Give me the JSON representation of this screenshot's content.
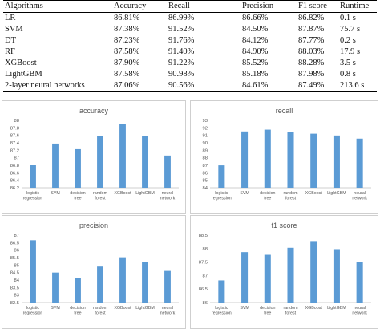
{
  "table": {
    "headers": [
      "Algorithms",
      "Accuracy",
      "Recall",
      "Precision",
      "F1 score",
      "Runtime"
    ],
    "rows": [
      [
        "LR",
        "86.81%",
        "86.99%",
        "86.66%",
        "86.82%",
        "0.1 s"
      ],
      [
        "SVM",
        "87.38%",
        "91.52%",
        "84.50%",
        "87.87%",
        "75.7 s"
      ],
      [
        "DT",
        "87.23%",
        "91.76%",
        "84.12%",
        "87.77%",
        "0.2 s"
      ],
      [
        "RF",
        "87.58%",
        "91.40%",
        "84.90%",
        "88.03%",
        "17.9 s"
      ],
      [
        "XGBoost",
        "87.90%",
        "91.22%",
        "85.52%",
        "88.28%",
        "3.5 s"
      ],
      [
        "LightGBM",
        "87.58%",
        "90.98%",
        "85.18%",
        "87.98%",
        "0.8 s"
      ],
      [
        "2-layer neural networks",
        "87.06%",
        "90.56%",
        "84.61%",
        "87.49%",
        "213.6 s"
      ]
    ]
  },
  "chart_data": [
    {
      "type": "bar",
      "title": "accuracy",
      "categories": [
        [
          "logistic",
          "regression"
        ],
        [
          "SVM"
        ],
        [
          "decision",
          "tree"
        ],
        [
          "random",
          "forest"
        ],
        [
          "XGBoost"
        ],
        [
          "LightGBM"
        ],
        [
          "neural",
          "network"
        ]
      ],
      "values": [
        86.81,
        87.38,
        87.23,
        87.58,
        87.9,
        87.58,
        87.06
      ],
      "ylim": [
        86.2,
        88
      ],
      "yticks": [
        "86.2",
        "86.4",
        "86.6",
        "86.8",
        "87",
        "87.2",
        "87.4",
        "87.6",
        "87.8",
        "88"
      ],
      "color": "#5b9bd5",
      "grid": false
    },
    {
      "type": "bar",
      "title": "recall",
      "categories": [
        [
          "logistic",
          "regression"
        ],
        [
          "SVM"
        ],
        [
          "decision",
          "tree"
        ],
        [
          "random",
          "forest"
        ],
        [
          "XGBoost"
        ],
        [
          "LightGBM"
        ],
        [
          "neural",
          "network"
        ]
      ],
      "values": [
        86.99,
        91.52,
        91.76,
        91.4,
        91.22,
        90.98,
        90.56
      ],
      "ylim": [
        84,
        93
      ],
      "yticks": [
        "84",
        "85",
        "86",
        "87",
        "88",
        "89",
        "90",
        "91",
        "92",
        "93"
      ],
      "color": "#5b9bd5",
      "grid": false
    },
    {
      "type": "bar",
      "title": "precision",
      "categories": [
        [
          "logistic",
          "regression"
        ],
        [
          "SVM"
        ],
        [
          "decision",
          "tree"
        ],
        [
          "random",
          "forest"
        ],
        [
          "XGBoost"
        ],
        [
          "LightGBM"
        ],
        [
          "neural",
          "network"
        ]
      ],
      "values": [
        86.66,
        84.5,
        84.12,
        84.9,
        85.52,
        85.18,
        84.61
      ],
      "ylim": [
        82.5,
        87
      ],
      "yticks": [
        "82.5",
        "83",
        "83.5",
        "84",
        "84.5",
        "85",
        "85.5",
        "86",
        "86.5",
        "87"
      ],
      "color": "#5b9bd5",
      "grid": false
    },
    {
      "type": "bar",
      "title": "f1 score",
      "categories": [
        [
          "logistic",
          "regression"
        ],
        [
          "SVM"
        ],
        [
          "decision",
          "tree"
        ],
        [
          "random",
          "forest"
        ],
        [
          "XGBoost"
        ],
        [
          "LightGBM"
        ],
        [
          "neural",
          "network"
        ]
      ],
      "values": [
        86.82,
        87.87,
        87.77,
        88.03,
        88.28,
        87.98,
        87.49
      ],
      "ylim": [
        86,
        88.5
      ],
      "yticks": [
        "86",
        "86.5",
        "87",
        "87.5",
        "88",
        "88.5"
      ],
      "color": "#5b9bd5",
      "grid": false
    }
  ]
}
